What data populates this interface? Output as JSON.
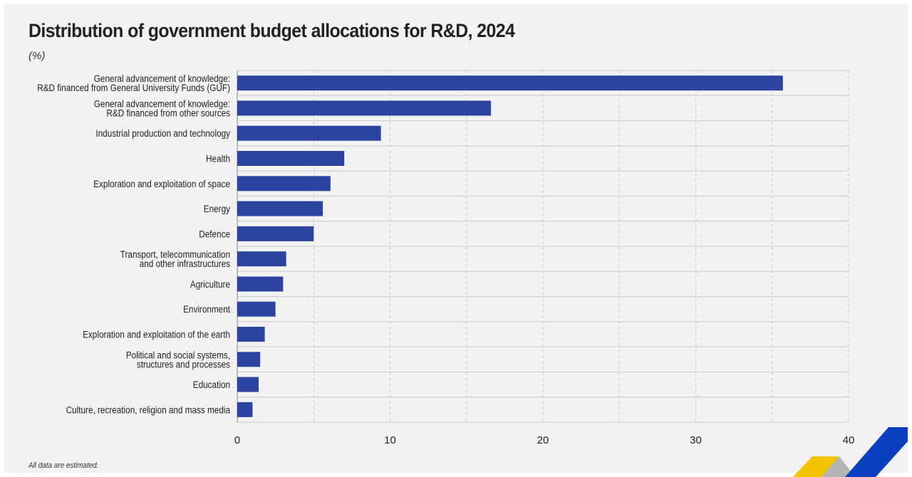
{
  "chart_data": {
    "type": "bar",
    "orientation": "horizontal",
    "title": "Distribution of government budget allocations for R&D, 2024",
    "unit": "(%)",
    "xlabel": "",
    "ylabel": "",
    "xlim": [
      0,
      40
    ],
    "x_ticks": [
      "0",
      "10",
      "20",
      "30",
      "40"
    ],
    "grid": true,
    "categories": [
      [
        "General advancement of knowledge:",
        "R&D financed from General University Funds (GUF)"
      ],
      [
        "General advancement of knowledge:",
        "R&D financed from other sources"
      ],
      [
        "Industrial production and technology"
      ],
      [
        "Health"
      ],
      [
        "Exploration and exploitation of space"
      ],
      [
        "Energy"
      ],
      [
        "Defence"
      ],
      [
        "Transport, telecommunication",
        "and other infrastructures"
      ],
      [
        "Agriculture"
      ],
      [
        "Environment"
      ],
      [
        "Exploration and exploitation of the earth"
      ],
      [
        "Political and social systems,",
        "structures and processes"
      ],
      [
        "Education"
      ],
      [
        "Culture, recreation, religion and mass media"
      ]
    ],
    "values": [
      35.7,
      16.6,
      9.4,
      7.0,
      6.1,
      5.6,
      5.0,
      3.2,
      3.0,
      2.5,
      1.8,
      1.5,
      1.4,
      1.0
    ],
    "bar_color": "#2a44a0",
    "footnote": "All data are estimated."
  },
  "colors": {
    "background": "#f2f2f2",
    "grid": "#c8c8c8",
    "logo_yellow": "#f5c400",
    "logo_blue": "#0a3fbf",
    "logo_grey": "#b3b3b3"
  }
}
